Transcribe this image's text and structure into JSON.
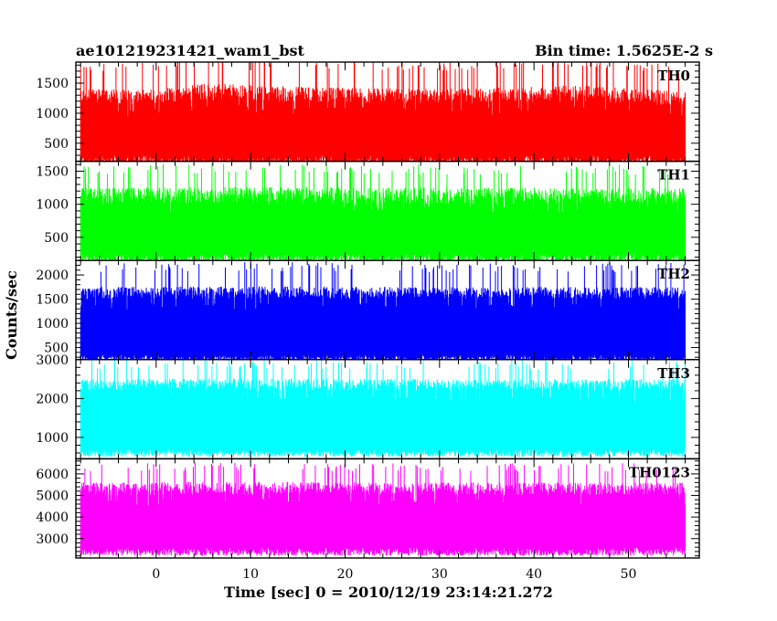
{
  "header": {
    "title": "ae101219231421_wam1_bst",
    "bin_time": "Bin time: 1.5625E-2 s"
  },
  "chart_data": {
    "type": "line",
    "title": "ae101219231421_wam1_bst",
    "subtitle": "Bin time: 1.5625E-2 s",
    "xlabel": "Time [sec] 0 = 2010/12/19 23:14:21.272",
    "ylabel": "Counts/sec",
    "xlim": [
      -8.5,
      57.5
    ],
    "x_ticks": [
      0,
      10,
      20,
      30,
      40,
      50
    ],
    "x_range_data": [
      -8,
      56
    ],
    "bin_time_s": 0.015625,
    "grid": false,
    "panels": [
      {
        "name": "TH0",
        "color": "#ff0000",
        "ylim": [
          200,
          1850
        ],
        "y_ticks": [
          500,
          1000,
          1500
        ],
        "y_tick_labels": [
          "500",
          "1000",
          "1500"
        ],
        "band": {
          "low": [
            100,
            300
          ],
          "base": [
            550,
            650
          ],
          "high": [
            1150,
            1400
          ],
          "peak": [
            1700,
            1850
          ]
        },
        "envelope": [
          [
            -8,
            1.0
          ],
          [
            0,
            1.0
          ],
          [
            5,
            1.12
          ],
          [
            15,
            1.05
          ],
          [
            30,
            1.0
          ],
          [
            45,
            1.08
          ],
          [
            56,
            0.95
          ]
        ]
      },
      {
        "name": "TH1",
        "color": "#00ff00",
        "ylim": [
          150,
          1650
        ],
        "y_ticks": [
          500,
          1000,
          1500
        ],
        "y_tick_labels": [
          "500",
          "1000",
          "1500"
        ],
        "band": {
          "low": [
            100,
            250
          ],
          "base": [
            550,
            600
          ],
          "high": [
            1000,
            1250
          ],
          "peak": [
            1450,
            1600
          ]
        },
        "envelope": [
          [
            -8,
            1.0
          ],
          [
            10,
            1.02
          ],
          [
            30,
            1.0
          ],
          [
            56,
            1.0
          ]
        ]
      },
      {
        "name": "TH2",
        "color": "#0000ff",
        "ylim": [
          250,
          2300
        ],
        "y_ticks": [
          500,
          1000,
          1500,
          2000
        ],
        "y_tick_labels": [
          "500",
          "1000",
          "1500",
          "2000"
        ],
        "band": {
          "low": [
            200,
            350
          ],
          "base": [
            850,
            950
          ],
          "high": [
            1500,
            1750
          ],
          "peak": [
            2050,
            2250
          ]
        },
        "envelope": [
          [
            -8,
            1.0
          ],
          [
            10,
            1.02
          ],
          [
            30,
            1.0
          ],
          [
            56,
            1.0
          ]
        ]
      },
      {
        "name": "TH3",
        "color": "#00ffff",
        "ylim": [
          450,
          3000
        ],
        "y_ticks": [
          1000,
          2000,
          3000
        ],
        "y_tick_labels": [
          "1000",
          "2000",
          "3000"
        ],
        "band": {
          "low": [
            500,
            700
          ],
          "base": [
            1350,
            1450
          ],
          "high": [
            2200,
            2500
          ],
          "peak": [
            2750,
            3000
          ]
        },
        "envelope": [
          [
            -8,
            1.0
          ],
          [
            10,
            1.02
          ],
          [
            30,
            1.0
          ],
          [
            56,
            1.0
          ]
        ]
      },
      {
        "name": "TH0123",
        "color": "#ff00ff",
        "ylim": [
          2100,
          6700
        ],
        "y_ticks": [
          3000,
          4000,
          5000,
          6000
        ],
        "y_tick_labels": [
          "3000",
          "4000",
          "5000",
          "6000"
        ],
        "band": {
          "low": [
            2200,
            2600
          ],
          "base": [
            3650,
            3750
          ],
          "high": [
            5000,
            5600
          ],
          "peak": [
            6100,
            6500
          ]
        },
        "envelope": [
          [
            -8,
            1.0
          ],
          [
            10,
            1.02
          ],
          [
            30,
            1.0
          ],
          [
            56,
            1.0
          ]
        ]
      }
    ]
  }
}
